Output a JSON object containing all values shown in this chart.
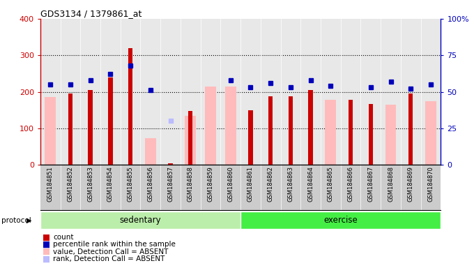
{
  "title": "GDS3134 / 1379861_at",
  "samples": [
    "GSM184851",
    "GSM184852",
    "GSM184853",
    "GSM184854",
    "GSM184855",
    "GSM184856",
    "GSM184857",
    "GSM184858",
    "GSM184859",
    "GSM184860",
    "GSM184861",
    "GSM184862",
    "GSM184863",
    "GSM184864",
    "GSM184865",
    "GSM184866",
    "GSM184867",
    "GSM184868",
    "GSM184869",
    "GSM184870"
  ],
  "count": [
    null,
    195,
    205,
    240,
    320,
    null,
    null,
    148,
    null,
    null,
    150,
    188,
    188,
    205,
    null,
    178,
    167,
    null,
    195,
    null
  ],
  "count_absent": [
    null,
    null,
    null,
    null,
    null,
    null,
    5,
    null,
    null,
    null,
    null,
    null,
    null,
    null,
    null,
    null,
    null,
    null,
    null,
    null
  ],
  "percentile_rank": [
    55,
    55,
    58,
    62,
    68,
    51,
    null,
    null,
    null,
    58,
    53,
    56,
    53,
    58,
    54,
    null,
    53,
    57,
    52,
    55
  ],
  "rank_absent": [
    null,
    null,
    null,
    null,
    null,
    null,
    30,
    null,
    null,
    null,
    null,
    null,
    null,
    null,
    null,
    null,
    null,
    null,
    null,
    null
  ],
  "value_absent": [
    185,
    null,
    null,
    null,
    null,
    73,
    null,
    135,
    215,
    215,
    null,
    null,
    null,
    null,
    178,
    null,
    null,
    165,
    null,
    175
  ],
  "ylim_left": [
    0,
    400
  ],
  "ylim_right": [
    0,
    100
  ],
  "yticks_left": [
    0,
    100,
    200,
    300,
    400
  ],
  "yticks_right": [
    0,
    25,
    50,
    75,
    100
  ],
  "ytick_labels_right": [
    "0",
    "25",
    "50",
    "75",
    "100%"
  ],
  "color_count": "#cc0000",
  "color_percentile": "#0000bb",
  "color_value_absent": "#ffbbbb",
  "color_rank_absent": "#bbbbff",
  "color_axes_left": "#cc0000",
  "color_axes_right": "#0000bb",
  "sed_color": "#bbeeaa",
  "ex_color": "#44ee44",
  "protocol_label": "protocol",
  "sedentary_label": "sedentary",
  "exercise_label": "exercise",
  "bg_color": "#e8e8e8",
  "xtick_bg": "#cccccc",
  "legend_items": [
    {
      "label": "count",
      "color": "#cc0000"
    },
    {
      "label": "percentile rank within the sample",
      "color": "#0000bb"
    },
    {
      "label": "value, Detection Call = ABSENT",
      "color": "#ffbbbb"
    },
    {
      "label": "rank, Detection Call = ABSENT",
      "color": "#bbbbff"
    }
  ]
}
